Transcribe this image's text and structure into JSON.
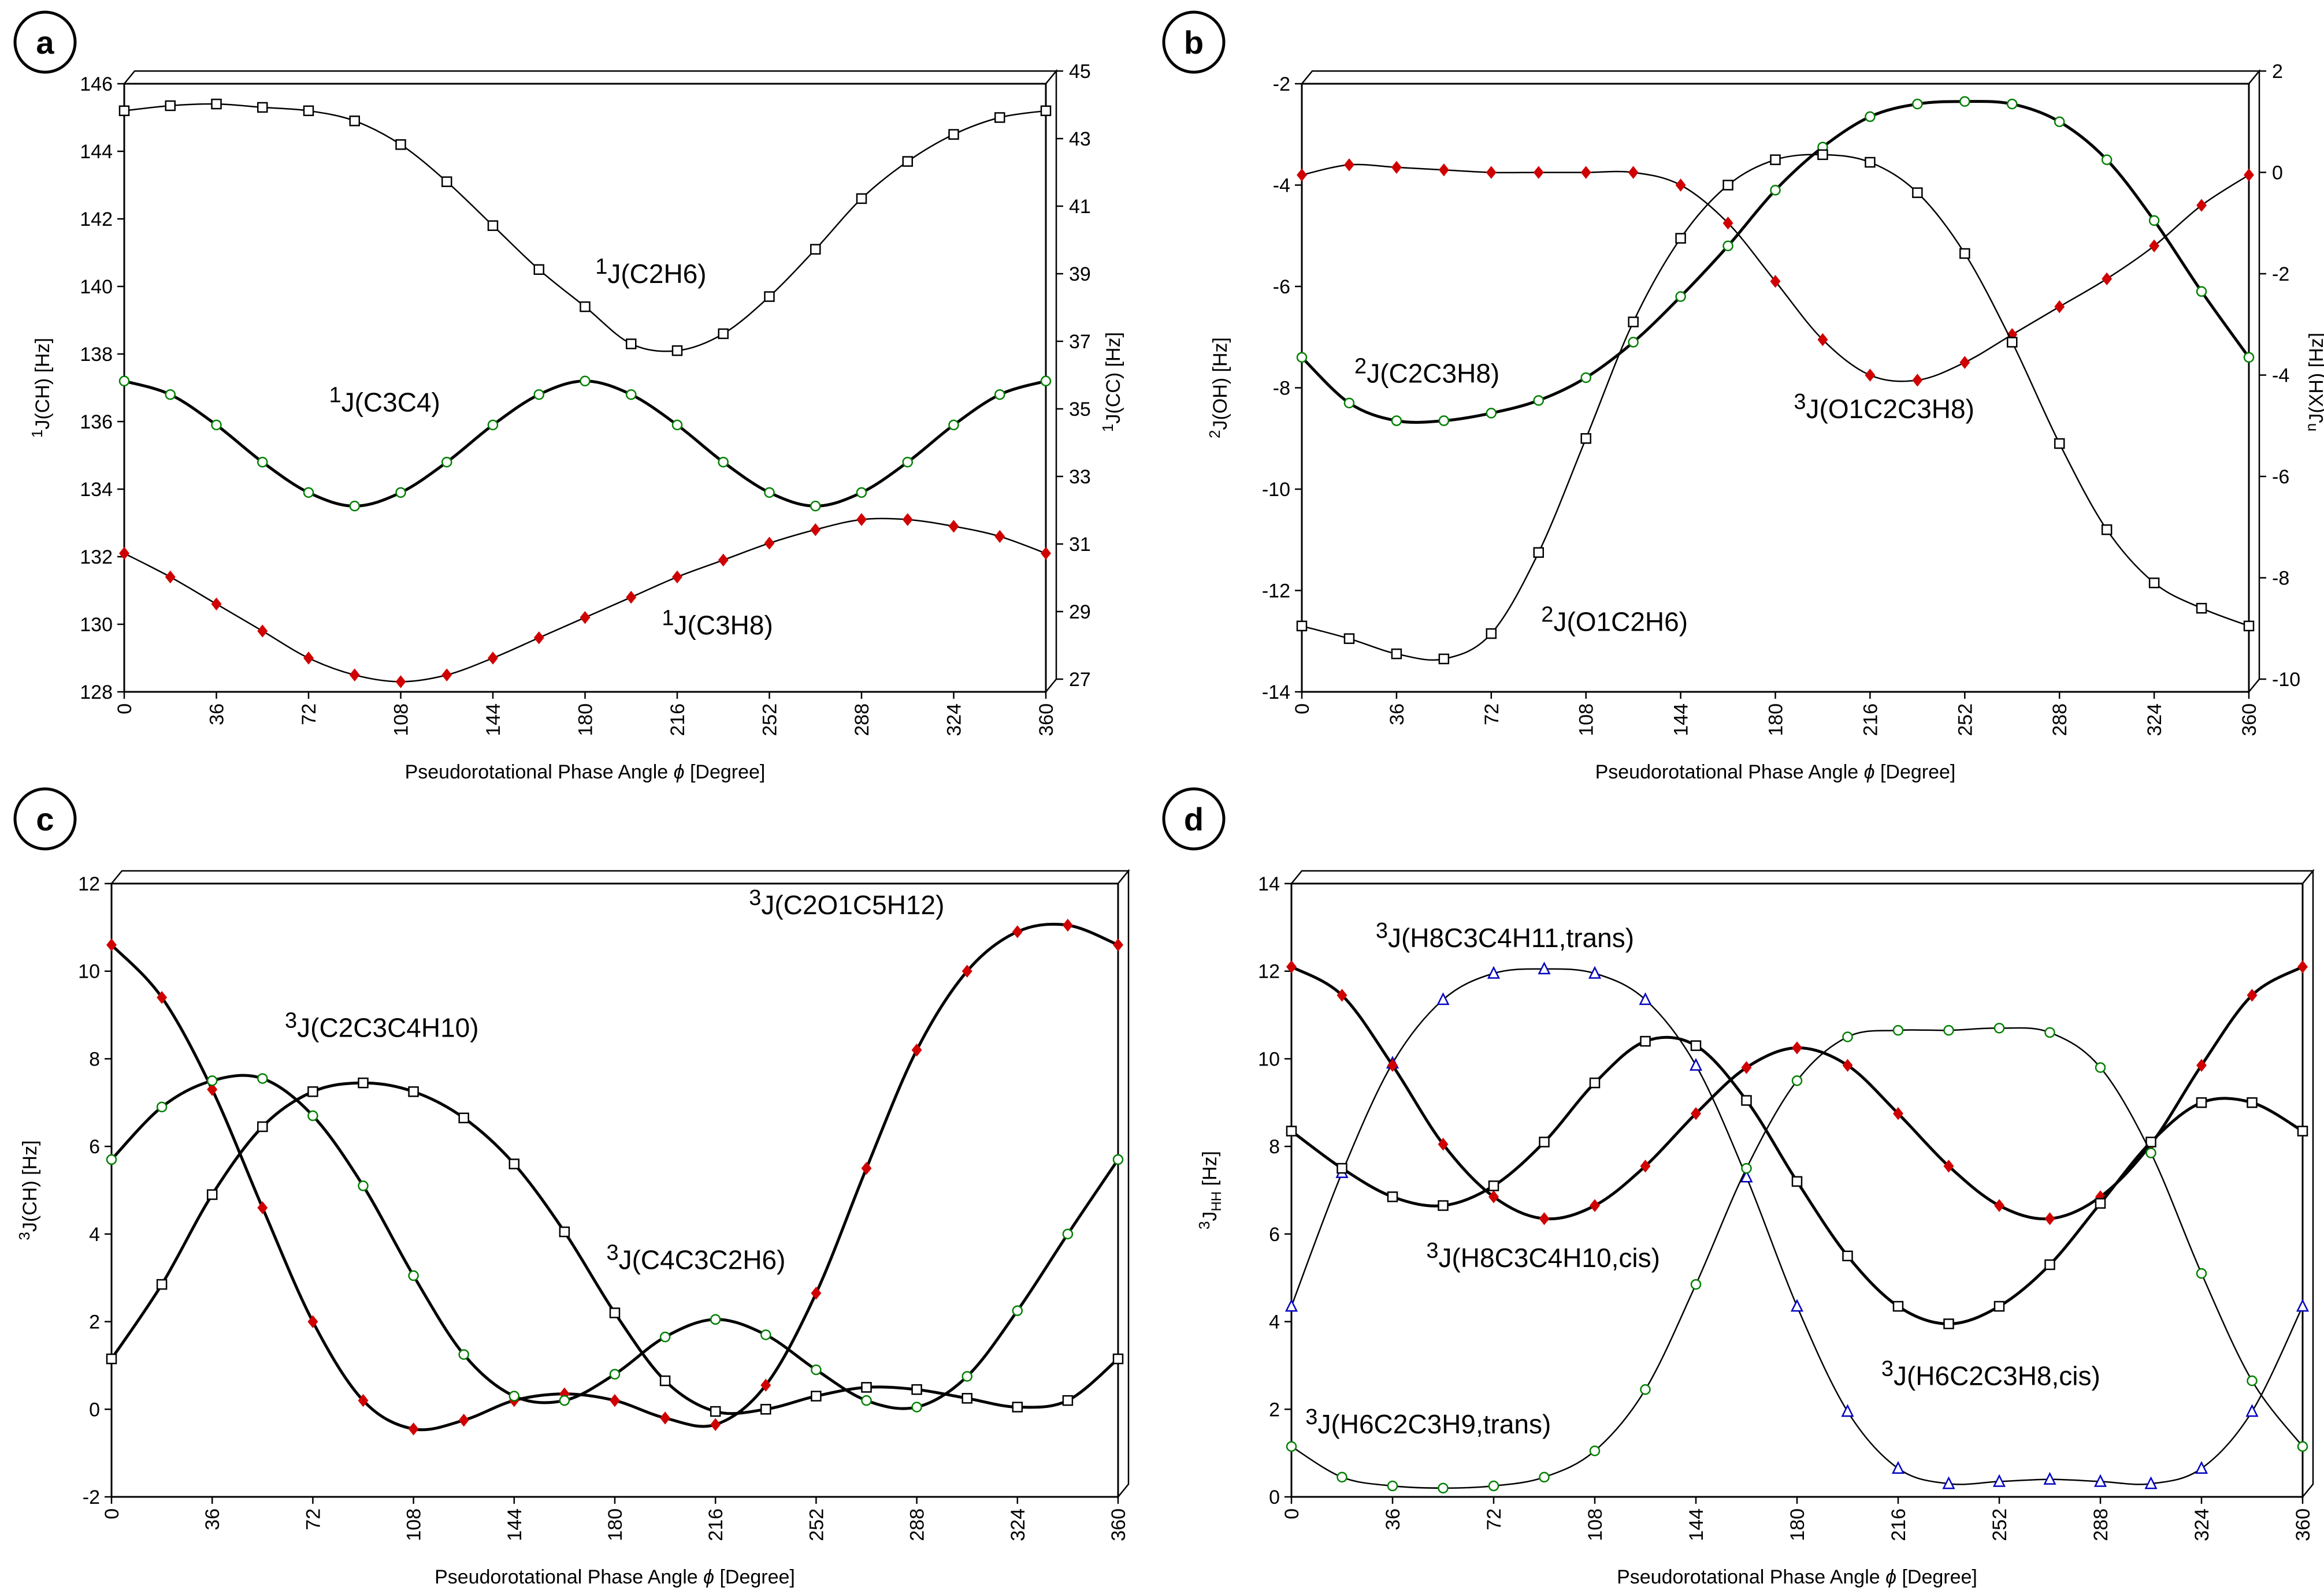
{
  "figure": {
    "panels": [
      "a",
      "b",
      "c",
      "d"
    ],
    "xlabel_text": "Pseudorotational Phase Angle ",
    "phi_symbol": "ϕ",
    "xlabel_unit": "[Degree]"
  },
  "chart_data": [
    {
      "id": "a",
      "type": "line",
      "xlabel": "Pseudorotational Phase Angle ϕ [Degree]",
      "xlim": [
        0,
        360
      ],
      "xticks": [
        0,
        36,
        72,
        108,
        144,
        180,
        216,
        252,
        288,
        324,
        360
      ],
      "ylabel": {
        "pre": "1",
        "sub": "J(CH)",
        "post": " [Hz]"
      },
      "ylim": [
        128,
        146
      ],
      "yticks": [
        128,
        130,
        132,
        134,
        136,
        138,
        140,
        142,
        144,
        146
      ],
      "y2label": {
        "pre": "1",
        "sub": "J(CC)",
        "post": " [Hz]"
      },
      "y2lim": [
        27,
        45
      ],
      "y2ticks": [
        27,
        29,
        31,
        33,
        35,
        37,
        39,
        41,
        43,
        45
      ],
      "series": [
        {
          "name": "1J(C2H6)",
          "sup": "1",
          "label": "J(C2H6)",
          "axis": "left",
          "marker": "square",
          "color": "#000000",
          "weight": "thin",
          "label_at": [
            184,
            140.1
          ],
          "x": [
            0,
            18,
            36,
            54,
            72,
            90,
            108,
            126,
            144,
            162,
            180,
            198,
            216,
            234,
            252,
            270,
            288,
            306,
            324,
            342,
            360
          ],
          "values": [
            145.2,
            145.35,
            145.4,
            145.3,
            145.2,
            144.9,
            144.2,
            143.1,
            141.8,
            140.5,
            139.4,
            138.3,
            138.1,
            138.6,
            139.7,
            141.1,
            142.6,
            143.7,
            144.5,
            145.0,
            145.2
          ]
        },
        {
          "name": "1J(C3C4)",
          "sup": "1",
          "label": "J(C3C4)",
          "axis": "right",
          "marker": "circle",
          "color": "#008000",
          "weight": "bold",
          "label_at": [
            80,
            35.3
          ],
          "x": [
            0,
            18,
            36,
            54,
            72,
            90,
            108,
            126,
            144,
            162,
            180,
            198,
            216,
            234,
            252,
            270,
            288,
            306,
            324,
            342,
            360
          ],
          "values": [
            36.2,
            35.8,
            34.9,
            33.8,
            32.9,
            32.5,
            32.9,
            33.8,
            34.9,
            35.8,
            36.2,
            35.8,
            34.9,
            33.8,
            32.9,
            32.5,
            32.9,
            33.8,
            34.9,
            35.8,
            36.2
          ]
        },
        {
          "name": "1J(C3H8)",
          "sup": "1",
          "label": "J(C3H8)",
          "axis": "left",
          "marker": "diamond",
          "color": "#d00000",
          "weight": "thin",
          "label_at": [
            210,
            129.7
          ],
          "x": [
            0,
            18,
            36,
            54,
            72,
            90,
            108,
            126,
            144,
            162,
            180,
            198,
            216,
            234,
            252,
            270,
            288,
            306,
            324,
            342,
            360
          ],
          "values": [
            132.1,
            131.4,
            130.6,
            129.8,
            129.0,
            128.5,
            128.3,
            128.5,
            129.0,
            129.6,
            130.2,
            130.8,
            131.4,
            131.9,
            132.4,
            132.8,
            133.1,
            133.1,
            132.9,
            132.6,
            132.1
          ]
        }
      ]
    },
    {
      "id": "b",
      "type": "line",
      "xlabel": "Pseudorotational Phase Angle ϕ [Degree]",
      "xlim": [
        0,
        360
      ],
      "xticks": [
        0,
        36,
        72,
        108,
        144,
        180,
        216,
        252,
        288,
        324,
        360
      ],
      "ylabel": {
        "pre": "2",
        "sub": "J(OH)",
        "post": " [Hz]"
      },
      "ylim": [
        -14,
        -2
      ],
      "yticks": [
        -14,
        -12,
        -10,
        -8,
        -6,
        -4,
        -2
      ],
      "y2label": {
        "pre": "n",
        "sub": "J(XH)",
        "post": " [Hz]"
      },
      "y2lim": [
        -10,
        2
      ],
      "y2ticks": [
        -10,
        -8,
        -6,
        -4,
        -2,
        0,
        2
      ],
      "series": [
        {
          "name": "2J(C2C3H8)",
          "sup": "2",
          "label": "J(C2C3H8)",
          "axis": "left",
          "marker": "circle",
          "color": "#008000",
          "weight": "bold",
          "label_at": [
            20,
            -7.9
          ],
          "x": [
            0,
            18,
            36,
            54,
            72,
            90,
            108,
            126,
            144,
            162,
            180,
            198,
            216,
            234,
            252,
            270,
            288,
            306,
            324,
            342,
            360
          ],
          "values": [
            -7.4,
            -8.3,
            -8.65,
            -8.65,
            -8.5,
            -8.25,
            -7.8,
            -7.1,
            -6.2,
            -5.2,
            -4.1,
            -3.25,
            -2.65,
            -2.4,
            -2.35,
            -2.4,
            -2.75,
            -3.5,
            -4.7,
            -6.1,
            -7.4
          ]
        },
        {
          "name": "3J(O1C2C3H8)",
          "sup": "3",
          "label": "J(O1C2C3H8)",
          "axis": "right",
          "marker": "diamond",
          "color": "#d00000",
          "weight": "thin",
          "label_at": [
            187,
            -4.6
          ],
          "x": [
            0,
            18,
            36,
            54,
            72,
            90,
            108,
            126,
            144,
            162,
            180,
            198,
            216,
            234,
            252,
            270,
            288,
            306,
            324,
            342,
            360
          ],
          "values": [
            0.2,
            0.4,
            0.35,
            0.3,
            0.25,
            0.25,
            0.25,
            0.25,
            0.0,
            -0.75,
            -1.9,
            -3.05,
            -3.75,
            -3.85,
            -3.5,
            -2.95,
            -2.4,
            -1.85,
            -1.2,
            -0.4,
            0.2
          ]
        },
        {
          "name": "2J(O1C2H6)",
          "sup": "2",
          "label": "J(O1C2H6)",
          "axis": "left",
          "marker": "square",
          "color": "#000000",
          "weight": "thin",
          "label_at": [
            91,
            -12.8
          ],
          "x": [
            0,
            18,
            36,
            54,
            72,
            90,
            108,
            126,
            144,
            162,
            180,
            198,
            216,
            234,
            252,
            270,
            288,
            306,
            324,
            342,
            360
          ],
          "values": [
            -12.7,
            -12.95,
            -13.25,
            -13.35,
            -12.85,
            -11.25,
            -9.0,
            -6.7,
            -5.05,
            -4.0,
            -3.5,
            -3.4,
            -3.55,
            -4.15,
            -5.35,
            -7.1,
            -9.1,
            -10.8,
            -11.85,
            -12.35,
            -12.7
          ]
        }
      ]
    },
    {
      "id": "c",
      "type": "line",
      "xlabel": "Pseudorotational Phase Angle ϕ [Degree]",
      "xlim": [
        0,
        360
      ],
      "xticks": [
        0,
        36,
        72,
        108,
        144,
        180,
        216,
        252,
        288,
        324,
        360
      ],
      "ylabel": {
        "pre": "3",
        "sub": "J(CH)",
        "post": " [Hz]"
      },
      "ylim": [
        -2,
        12
      ],
      "yticks": [
        -2,
        0,
        2,
        4,
        6,
        8,
        10,
        12
      ],
      "series": [
        {
          "name": "3J(C2O1C5H12)",
          "sup": "3",
          "label": "J(C2O1C5H12)",
          "axis": "left",
          "marker": "diamond",
          "color": "#d00000",
          "weight": "bold",
          "label_at": [
            228,
            11.3
          ],
          "x": [
            0,
            18,
            36,
            54,
            72,
            90,
            108,
            126,
            144,
            162,
            180,
            198,
            216,
            234,
            252,
            270,
            288,
            306,
            324,
            342,
            360
          ],
          "values": [
            10.6,
            9.4,
            7.3,
            4.6,
            2.0,
            0.2,
            -0.45,
            -0.25,
            0.2,
            0.35,
            0.2,
            -0.2,
            -0.35,
            0.55,
            2.65,
            5.5,
            8.2,
            10.0,
            10.9,
            11.05,
            10.6
          ]
        },
        {
          "name": "3J(C2C3C4H10)",
          "sup": "3",
          "label": "J(C2C3C4H10)",
          "axis": "left",
          "marker": "circle",
          "color": "#008000",
          "weight": "bold",
          "label_at": [
            62,
            8.5
          ],
          "x": [
            0,
            18,
            36,
            54,
            72,
            90,
            108,
            126,
            144,
            162,
            180,
            198,
            216,
            234,
            252,
            270,
            288,
            306,
            324,
            342,
            360
          ],
          "values": [
            5.7,
            6.9,
            7.5,
            7.55,
            6.7,
            5.1,
            3.05,
            1.25,
            0.3,
            0.2,
            0.8,
            1.65,
            2.05,
            1.7,
            0.9,
            0.2,
            0.05,
            0.75,
            2.25,
            4.0,
            5.7
          ]
        },
        {
          "name": "3J(C4C3C2H6)",
          "sup": "3",
          "label": "J(C4C3C2H6)",
          "axis": "left",
          "marker": "square",
          "color": "#000000",
          "weight": "bold",
          "label_at": [
            177,
            3.2
          ],
          "x": [
            0,
            18,
            36,
            54,
            72,
            90,
            108,
            126,
            144,
            162,
            180,
            198,
            216,
            234,
            252,
            270,
            288,
            306,
            324,
            342,
            360
          ],
          "values": [
            1.15,
            2.85,
            4.9,
            6.45,
            7.25,
            7.45,
            7.25,
            6.65,
            5.6,
            4.05,
            2.2,
            0.65,
            -0.05,
            0.0,
            0.3,
            0.5,
            0.45,
            0.25,
            0.05,
            0.2,
            1.15
          ]
        }
      ]
    },
    {
      "id": "d",
      "type": "line",
      "xlabel": "Pseudorotational Phase Angle ϕ [Degree]",
      "xlim": [
        0,
        360
      ],
      "xticks": [
        0,
        36,
        72,
        108,
        144,
        180,
        216,
        252,
        288,
        324,
        360
      ],
      "ylabel": {
        "pre": "3",
        "sub": "J",
        "subsub": "HH",
        "post": " [Hz]"
      },
      "ylim": [
        0,
        14
      ],
      "yticks": [
        0,
        2,
        4,
        6,
        8,
        10,
        12,
        14
      ],
      "series": [
        {
          "name": "3J(H8C3C4H11,trans)",
          "sup": "3",
          "label": "J(H8C3C4H11,trans)",
          "axis": "left",
          "marker": "triangle",
          "color": "#0000c0",
          "weight": "thin",
          "label_at": [
            30,
            12.55
          ],
          "x": [
            0,
            18,
            36,
            54,
            72,
            90,
            108,
            126,
            144,
            162,
            180,
            198,
            216,
            234,
            252,
            270,
            288,
            306,
            324,
            342,
            360
          ],
          "values": [
            4.35,
            7.4,
            9.9,
            11.35,
            11.95,
            12.05,
            11.95,
            11.35,
            9.85,
            7.3,
            4.35,
            1.95,
            0.65,
            0.3,
            0.35,
            0.4,
            0.35,
            0.3,
            0.65,
            1.95,
            4.35
          ]
        },
        {
          "name": "3J(H8C3C4H10,cis)",
          "sup": "3",
          "label": "J(H8C3C4H10,cis)",
          "axis": "left",
          "marker": "diamond",
          "color": "#d00000",
          "weight": "bold",
          "label_at": [
            48,
            5.25
          ],
          "x": [
            0,
            18,
            36,
            54,
            72,
            90,
            108,
            126,
            144,
            162,
            180,
            198,
            216,
            234,
            252,
            270,
            288,
            306,
            324,
            342,
            360
          ],
          "values": [
            12.1,
            11.45,
            9.85,
            8.05,
            6.85,
            6.35,
            6.65,
            7.55,
            8.75,
            9.8,
            10.25,
            9.85,
            8.75,
            7.55,
            6.65,
            6.35,
            6.85,
            8.05,
            9.85,
            11.45,
            12.1
          ]
        },
        {
          "name": "3J(H6C2C3H8,cis)",
          "sup": "3",
          "label": "J(H6C2C3H8,cis)",
          "axis": "left",
          "marker": "square",
          "color": "#000000",
          "weight": "bold",
          "label_at": [
            210,
            2.55
          ],
          "x": [
            0,
            18,
            36,
            54,
            72,
            90,
            108,
            126,
            144,
            162,
            180,
            198,
            216,
            234,
            252,
            270,
            288,
            306,
            324,
            342,
            360
          ],
          "values": [
            8.35,
            7.5,
            6.85,
            6.65,
            7.1,
            8.1,
            9.45,
            10.4,
            10.3,
            9.05,
            7.2,
            5.5,
            4.35,
            3.95,
            4.35,
            5.3,
            6.7,
            8.1,
            9.0,
            9.0,
            8.35
          ]
        },
        {
          "name": "3J(H6C2C3H9,trans)",
          "sup": "3",
          "label": "J(H6C2C3H9,trans)",
          "axis": "left",
          "marker": "circle",
          "color": "#008000",
          "weight": "thin",
          "label_at": [
            5,
            1.45
          ],
          "x": [
            0,
            18,
            36,
            54,
            72,
            90,
            108,
            126,
            144,
            162,
            180,
            198,
            216,
            234,
            252,
            270,
            288,
            306,
            324,
            342,
            360
          ],
          "values": [
            1.15,
            0.45,
            0.25,
            0.2,
            0.25,
            0.45,
            1.05,
            2.45,
            4.85,
            7.5,
            9.5,
            10.5,
            10.65,
            10.65,
            10.7,
            10.6,
            9.8,
            7.85,
            5.1,
            2.65,
            1.15
          ]
        }
      ]
    }
  ]
}
